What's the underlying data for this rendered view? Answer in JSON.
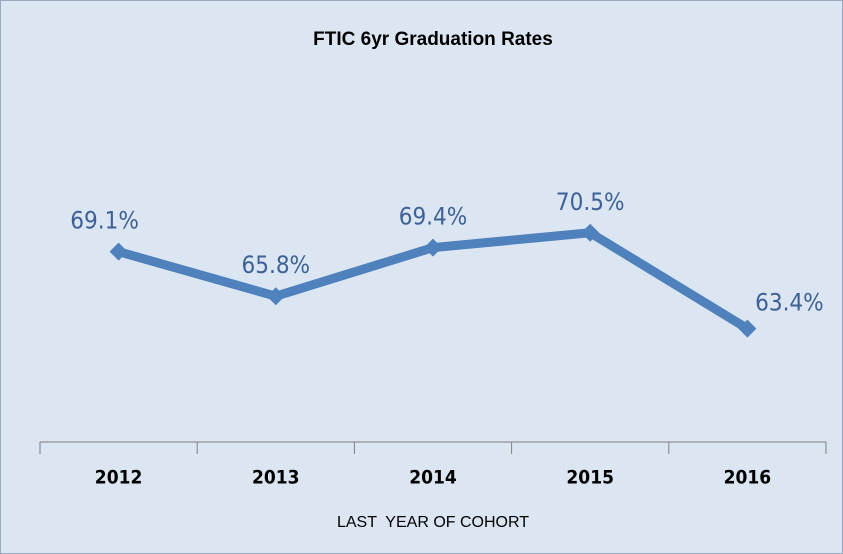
{
  "chart_data": {
    "type": "line",
    "title": "FTIC 6yr Graduation Rates",
    "x_label": "LAST  YEAR OF COHORT",
    "categories": [
      "2012",
      "2013",
      "2014",
      "2015",
      "2016"
    ],
    "values": [
      69.1,
      65.8,
      69.4,
      70.5,
      63.4
    ],
    "value_labels": [
      "69.1%",
      "65.8%",
      "69.4%",
      "70.5%",
      "63.4%"
    ],
    "color": "#4f81bd",
    "ylim": [
      55,
      85
    ]
  }
}
